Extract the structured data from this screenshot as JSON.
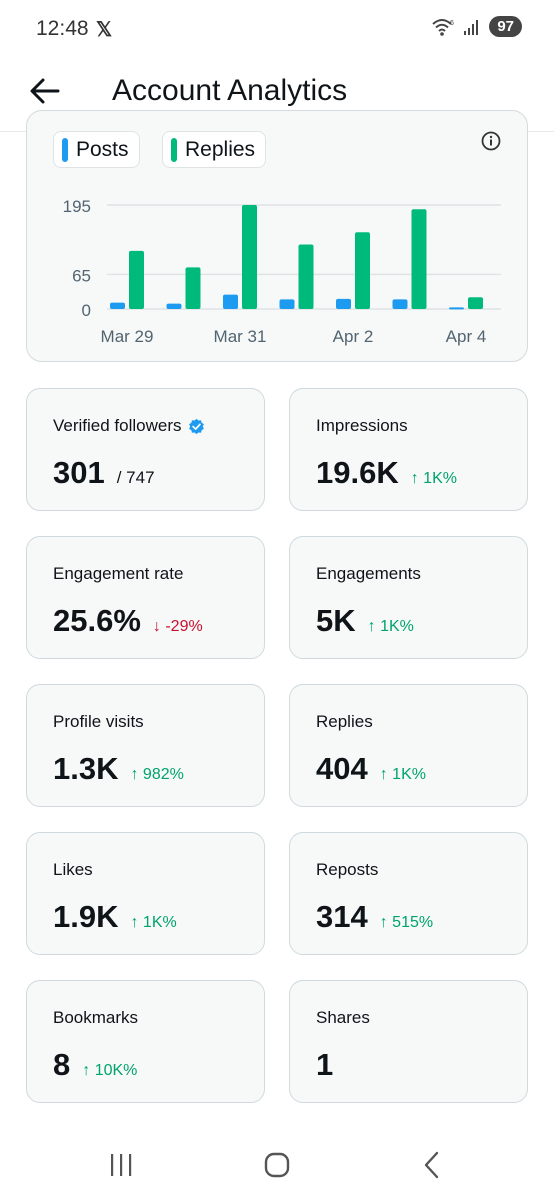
{
  "status_bar": {
    "time": "12:48",
    "x_logo": "𝕏",
    "battery": "97",
    "wifi_badge": "6"
  },
  "header": {
    "title": "Account Analytics",
    "back_icon": "arrow-left-icon"
  },
  "chart": {
    "legend": [
      {
        "label": "Posts",
        "color": "#1d9bf0"
      },
      {
        "label": "Replies",
        "color": "#00ba7c"
      }
    ],
    "info_icon": "info-icon"
  },
  "chart_data": {
    "type": "bar",
    "categories": [
      "Mar 29",
      "Mar 30",
      "Mar 31",
      "Apr 1",
      "Apr 2",
      "Apr 3",
      "Apr 4"
    ],
    "x_tick_labels": [
      "Mar 29",
      "Mar 31",
      "Apr 2",
      "Apr 4"
    ],
    "y_tick_labels": [
      "195",
      "65",
      "0"
    ],
    "y_ticks": [
      195,
      65,
      0
    ],
    "ylim": [
      0,
      195
    ],
    "series": [
      {
        "name": "Posts",
        "color": "#1d9bf0",
        "values": [
          12,
          10,
          27,
          18,
          19,
          18,
          3
        ]
      },
      {
        "name": "Replies",
        "color": "#00ba7c",
        "values": [
          109,
          78,
          195,
          121,
          144,
          187,
          22
        ]
      }
    ],
    "legend_position": "top-left",
    "grid": true
  },
  "stats": [
    {
      "label": "Verified followers",
      "value": "301",
      "total": "/ 747",
      "verified_icon": "verified-badge-icon"
    },
    {
      "label": "Impressions",
      "value": "19.6K",
      "change": "↑ 1K%",
      "direction": "up"
    },
    {
      "label": "Engagement rate",
      "value": "25.6%",
      "change": "↓ -29%",
      "direction": "down"
    },
    {
      "label": "Engagements",
      "value": "5K",
      "change": "↑ 1K%",
      "direction": "up"
    },
    {
      "label": "Profile visits",
      "value": "1.3K",
      "change": "↑ 982%",
      "direction": "up"
    },
    {
      "label": "Replies",
      "value": "404",
      "change": "↑ 1K%",
      "direction": "up"
    },
    {
      "label": "Likes",
      "value": "1.9K",
      "change": "↑ 1K%",
      "direction": "up"
    },
    {
      "label": "Reposts",
      "value": "314",
      "change": "↑ 515%",
      "direction": "up"
    },
    {
      "label": "Bookmarks",
      "value": "8",
      "change": "↑ 10K%",
      "direction": "up"
    },
    {
      "label": "Shares",
      "value": "1",
      "change": "",
      "direction": "up"
    }
  ],
  "nav_bar": {
    "recents_icon": "recents-icon",
    "home_icon": "home-icon",
    "back_icon": "back-chevron-icon"
  }
}
